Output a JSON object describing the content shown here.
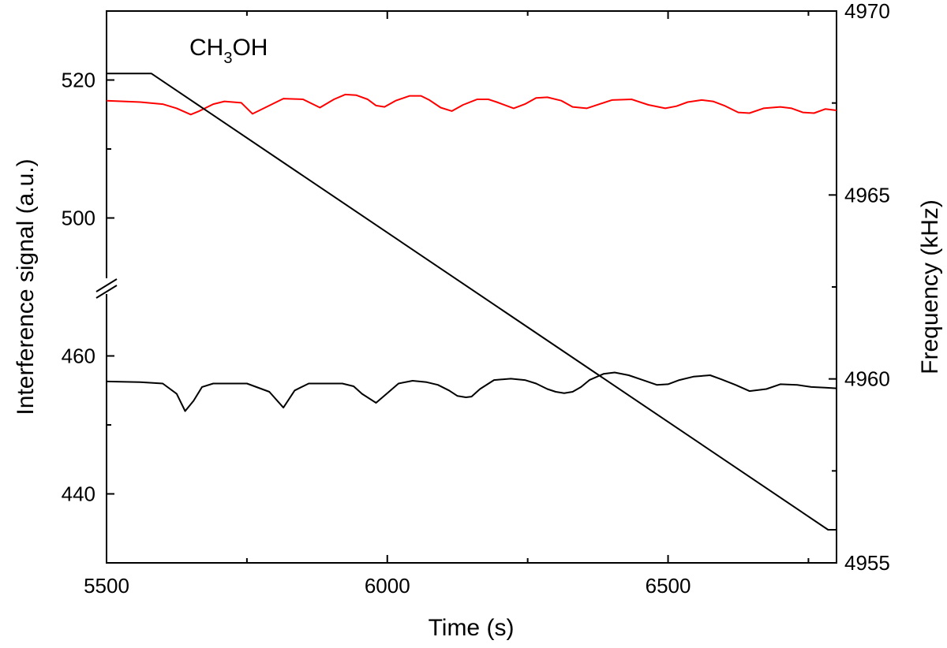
{
  "chart_data": {
    "type": "line",
    "annotation": {
      "base": "CH",
      "sub": "3",
      "tail": "OH"
    },
    "xlabel": "Time (s)",
    "ylabel_left": "Interference signal (a.u.)",
    "ylabel_right": "Frequency (kHz)",
    "xlim": [
      5500,
      6800
    ],
    "x_ticks": [
      "5500",
      "6000",
      "6500"
    ],
    "left_axis": {
      "broken": true,
      "upper_segment": {
        "range": [
          490,
          530
        ],
        "ticks": [
          "500",
          "520"
        ]
      },
      "lower_segment": {
        "range": [
          430,
          470
        ],
        "ticks": [
          "440",
          "460"
        ]
      }
    },
    "ylim_right": [
      4955,
      4970
    ],
    "right_ticks": [
      "4955",
      "4960",
      "4965",
      "4970"
    ],
    "series": [
      {
        "name": "red interference signal",
        "axis": "left",
        "color": "#ff0000",
        "x": [
          5500,
          5560,
          5600,
          5625,
          5650,
          5665,
          5690,
          5710,
          5740,
          5760,
          5790,
          5815,
          5850,
          5880,
          5905,
          5925,
          5945,
          5965,
          5980,
          5995,
          6015,
          6040,
          6060,
          6075,
          6095,
          6115,
          6135,
          6160,
          6180,
          6195,
          6225,
          6245,
          6265,
          6285,
          6310,
          6330,
          6355,
          6370,
          6400,
          6435,
          6465,
          6495,
          6515,
          6535,
          6560,
          6580,
          6600,
          6625,
          6645,
          6670,
          6700,
          6720,
          6740,
          6760,
          6780,
          6800
        ],
        "y": [
          517,
          516.8,
          516.5,
          515.9,
          515.0,
          515.5,
          516.5,
          516.9,
          516.7,
          515.1,
          516.3,
          517.3,
          517.2,
          516.0,
          517.2,
          517.9,
          517.8,
          517.2,
          516.3,
          516.1,
          517.0,
          517.7,
          517.7,
          517.1,
          516.0,
          515.5,
          516.4,
          517.2,
          517.2,
          516.8,
          515.9,
          516.5,
          517.4,
          517.5,
          517.0,
          516.1,
          515.9,
          516.3,
          517.1,
          517.2,
          516.4,
          515.9,
          516.2,
          516.8,
          517.1,
          516.9,
          516.3,
          515.3,
          515.2,
          515.9,
          516.1,
          515.9,
          515.3,
          515.2,
          515.8,
          515.6
        ]
      },
      {
        "name": "black interference signal",
        "axis": "left",
        "color": "#000000",
        "x": [
          5500,
          5560,
          5600,
          5625,
          5640,
          5655,
          5670,
          5690,
          5720,
          5750,
          5790,
          5815,
          5835,
          5860,
          5890,
          5920,
          5940,
          5955,
          5980,
          6000,
          6020,
          6045,
          6070,
          6090,
          6110,
          6125,
          6140,
          6150,
          6165,
          6190,
          6220,
          6245,
          6265,
          6285,
          6300,
          6315,
          6330,
          6345,
          6360,
          6385,
          6405,
          6430,
          6455,
          6480,
          6500,
          6520,
          6545,
          6575,
          6595,
          6620,
          6645,
          6675,
          6700,
          6730,
          6755,
          6780,
          6800
        ],
        "y": [
          456.3,
          456.2,
          456,
          454.5,
          452.0,
          453.5,
          455.5,
          456,
          456,
          456,
          454.8,
          452.5,
          455.0,
          456,
          456,
          456,
          455.6,
          454.5,
          453.2,
          454.6,
          456,
          456.4,
          456.2,
          455.8,
          455.0,
          454.2,
          454.0,
          454.1,
          455.2,
          456.5,
          456.7,
          456.5,
          456,
          455.2,
          454.8,
          454.6,
          454.8,
          455.5,
          456.5,
          457.4,
          457.6,
          457.2,
          456.5,
          455.8,
          455.9,
          456.5,
          457.0,
          457.2,
          456.6,
          455.8,
          454.9,
          455.2,
          455.9,
          455.8,
          455.5,
          455.4,
          455.3
        ]
      },
      {
        "name": "frequency ramp",
        "axis": "right",
        "color": "#000000",
        "x": [
          5500,
          5580,
          6785,
          6800
        ],
        "y": [
          4968.3,
          4968.3,
          4955.9,
          4955.9
        ]
      }
    ]
  }
}
